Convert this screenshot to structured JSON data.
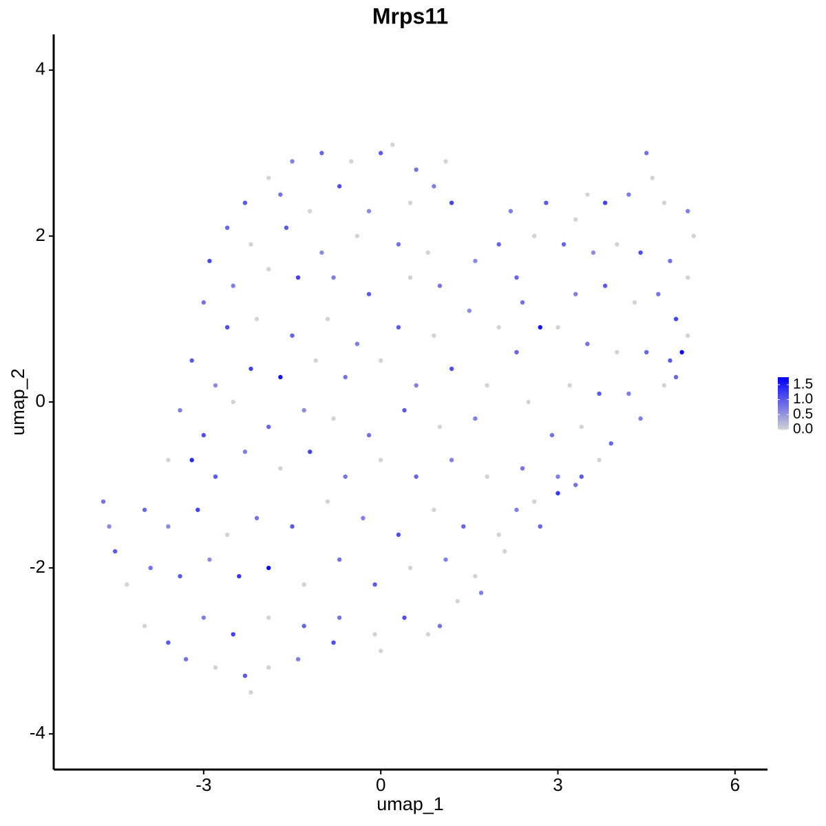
{
  "chart_data": {
    "type": "scatter",
    "title": "Mrps11",
    "x_label": "umap_1",
    "y_label": "umap_2",
    "xlim": [
      -5.54,
      6.55
    ],
    "ylim": [
      -4.43,
      4.43
    ],
    "xticks": [
      -3,
      0,
      3,
      6
    ],
    "yticks": [
      -4,
      -2,
      0,
      2,
      4
    ],
    "colors": [
      "#d3d3d3",
      "#0000ff"
    ],
    "color_lim": [
      0,
      1.75
    ],
    "color_ticks": [
      {
        "value": 0,
        "label": "0.0"
      },
      0.5,
      {
        "value": 1,
        "label": "1.0"
      },
      1.5
    ],
    "x": [
      -1.5,
      -1.0,
      -0.5,
      0,
      0.2,
      0.6,
      -1.9,
      1.1,
      -2.3,
      -1.7,
      -1.2,
      -0.7,
      -0.2,
      0.5,
      0.9,
      1.2,
      -2.6,
      -2.2,
      -1.6,
      -1.0,
      -0.4,
      0.3,
      0.8,
      -2.9,
      -2.5,
      -1.9,
      -1.4,
      -0.8,
      -0.2,
      0.5,
      1.0,
      1.6,
      2.0,
      -3.0,
      -2.6,
      -2.1,
      -1.5,
      -0.9,
      -0.4,
      0.3,
      0.9,
      1.5,
      2.0,
      2.4,
      2.7,
      -3.2,
      -2.8,
      -2.2,
      -1.7,
      -1.1,
      -0.6,
      0,
      0.6,
      1.2,
      1.8,
      2.3,
      -3.4,
      -3.0,
      -2.5,
      -1.9,
      -1.3,
      -0.8,
      -0.2,
      0.4,
      1.0,
      1.6,
      2.5,
      -3.6,
      -3.2,
      -2.8,
      -2.3,
      -1.7,
      -1.2,
      -0.6,
      0,
      0.6,
      1.2,
      1.8,
      2.4,
      -4.0,
      -3.6,
      -3.1,
      -2.6,
      -2.1,
      -1.5,
      -0.9,
      -0.3,
      0.3,
      0.9,
      1.4,
      2.0,
      -4.3,
      -3.9,
      -3.4,
      -2.9,
      -2.4,
      -1.9,
      -1.3,
      -0.7,
      -0.1,
      0.5,
      1.1,
      1.6,
      -4.0,
      -3.6,
      -3.0,
      -2.5,
      -1.9,
      -1.3,
      -0.7,
      -0.1,
      0.4,
      0.8,
      -3.3,
      -2.8,
      -2.3,
      -1.9,
      -1.4,
      -0.8,
      0.0,
      -4.7,
      -4.6,
      -4.5,
      -2.2,
      2.8,
      3.3,
      3.5,
      3.8,
      4.2,
      4.5,
      4.6,
      4.8,
      5.2,
      5.3,
      3.1,
      3.6,
      4.0,
      4.4,
      4.9,
      5.2,
      3.3,
      3.8,
      4.3,
      4.7,
      5.0,
      5.2,
      3.0,
      3.5,
      4.0,
      4.5,
      4.9,
      5.1,
      3.2,
      3.7,
      4.2,
      4.8,
      5.0,
      2.9,
      3.4,
      3.9,
      4.4,
      3.0,
      3.4,
      3.7,
      2.6,
      3.0,
      3.3,
      2.7,
      2.3,
      2.1,
      1.7,
      1.3,
      1.0,
      2.6,
      2.3,
      2.2
    ],
    "y": [
      2.9,
      3.0,
      2.9,
      3.0,
      3.1,
      2.8,
      2.7,
      2.9,
      2.4,
      2.5,
      2.3,
      2.6,
      2.3,
      2.4,
      2.6,
      2.4,
      2.1,
      1.9,
      2.1,
      1.8,
      2.0,
      1.9,
      1.8,
      1.7,
      1.4,
      1.6,
      1.5,
      1.5,
      1.3,
      1.5,
      1.4,
      1.7,
      1.9,
      1.2,
      0.9,
      1.0,
      0.8,
      1.0,
      0.7,
      0.9,
      0.8,
      1.1,
      0.9,
      1.2,
      0.9,
      0.5,
      0.2,
      0.4,
      0.3,
      0.5,
      0.3,
      0.5,
      0.2,
      0.4,
      0.2,
      0.6,
      -0.1,
      -0.4,
      0,
      -0.3,
      -0.1,
      -0.2,
      -0.4,
      -0.1,
      -0.3,
      -0.2,
      0,
      -0.7,
      -0.7,
      -0.9,
      -0.6,
      -0.8,
      -0.6,
      -0.9,
      -0.7,
      -0.9,
      -0.7,
      -0.9,
      -0.8,
      -1.3,
      -1.5,
      -1.3,
      -1.6,
      -1.4,
      -1.5,
      -1.2,
      -1.4,
      -1.6,
      -1.3,
      -1.5,
      -1.6,
      -2.2,
      -2.0,
      -2.1,
      -1.9,
      -2.1,
      -2.0,
      -2.2,
      -1.9,
      -2.2,
      -2.0,
      -1.9,
      -2.1,
      -2.7,
      -2.9,
      -2.6,
      -2.8,
      -2.6,
      -2.7,
      -2.6,
      -2.8,
      -2.6,
      -2.8,
      -3.1,
      -3.2,
      -3.3,
      -3.2,
      -3.1,
      -2.9,
      -3.0,
      -1.2,
      -1.5,
      -1.8,
      -3.5,
      2.4,
      2.2,
      2.5,
      2.4,
      2.5,
      3.0,
      2.7,
      2.4,
      2.3,
      2.0,
      1.9,
      1.8,
      1.9,
      1.8,
      1.7,
      1.5,
      1.3,
      1.4,
      1.2,
      1.3,
      1.0,
      0.8,
      0.9,
      0.7,
      0.6,
      0.6,
      0.5,
      0.6,
      0.2,
      0.1,
      0.1,
      0.2,
      0.3,
      -0.4,
      -0.3,
      -0.5,
      -0.2,
      -0.9,
      -0.9,
      -0.7,
      -1.2,
      -1.1,
      -1.0,
      -1.5,
      -1.3,
      -1.8,
      -2.3,
      -2.4,
      -2.7,
      2.0,
      1.5,
      2.3
    ],
    "values": [
      0.7,
      0.9,
      0,
      1.0,
      0,
      0.8,
      0,
      0,
      1.0,
      0.8,
      0,
      1.1,
      0.6,
      0,
      0.7,
      1.2,
      0.9,
      0,
      1.0,
      0.6,
      0,
      0.8,
      0,
      1.1,
      0.7,
      0,
      1.2,
      0.7,
      1.0,
      0,
      0.8,
      0.6,
      0.9,
      0.8,
      1.1,
      0,
      0.9,
      0,
      0.7,
      1.0,
      0,
      0.6,
      0,
      0.8,
      1.6,
      1.0,
      0.6,
      1.2,
      1.6,
      0,
      0.8,
      0,
      0.7,
      1.1,
      0,
      0.9,
      0.7,
      1.1,
      0,
      0.9,
      0.6,
      0,
      0.8,
      1.0,
      0,
      0.7,
      0,
      0,
      1.4,
      1.0,
      0.7,
      0,
      1.2,
      0.8,
      0,
      0.9,
      0.7,
      0,
      0.8,
      0.9,
      0.6,
      1.2,
      0,
      0.8,
      1.0,
      0,
      0.7,
      1.1,
      0,
      0.9,
      0,
      0,
      0.8,
      1.0,
      0.6,
      1.3,
      1.7,
      0,
      0.8,
      1.0,
      0,
      0.7,
      0,
      0,
      1.0,
      0.7,
      1.2,
      0,
      0.9,
      0.8,
      0,
      1.1,
      0,
      0.8,
      0,
      1.0,
      0,
      0.7,
      1.1,
      0,
      0.8,
      0.6,
      1.0,
      0,
      1.0,
      0,
      0,
      1.2,
      0.7,
      0.8,
      0,
      0,
      0.7,
      0,
      0.9,
      0.6,
      0,
      1.1,
      0.8,
      0,
      0.7,
      1.0,
      0,
      0.8,
      1.2,
      0,
      0,
      0.8,
      0,
      0.9,
      1.0,
      1.7,
      0,
      1.0,
      0.7,
      0,
      0.9,
      0.8,
      0,
      0.9,
      0.7,
      0.7,
      1.0,
      0,
      0,
      1.3,
      0.8,
      0.9,
      0.7,
      0,
      0.7,
      0,
      0.8,
      0,
      0.9,
      0.7
    ]
  }
}
